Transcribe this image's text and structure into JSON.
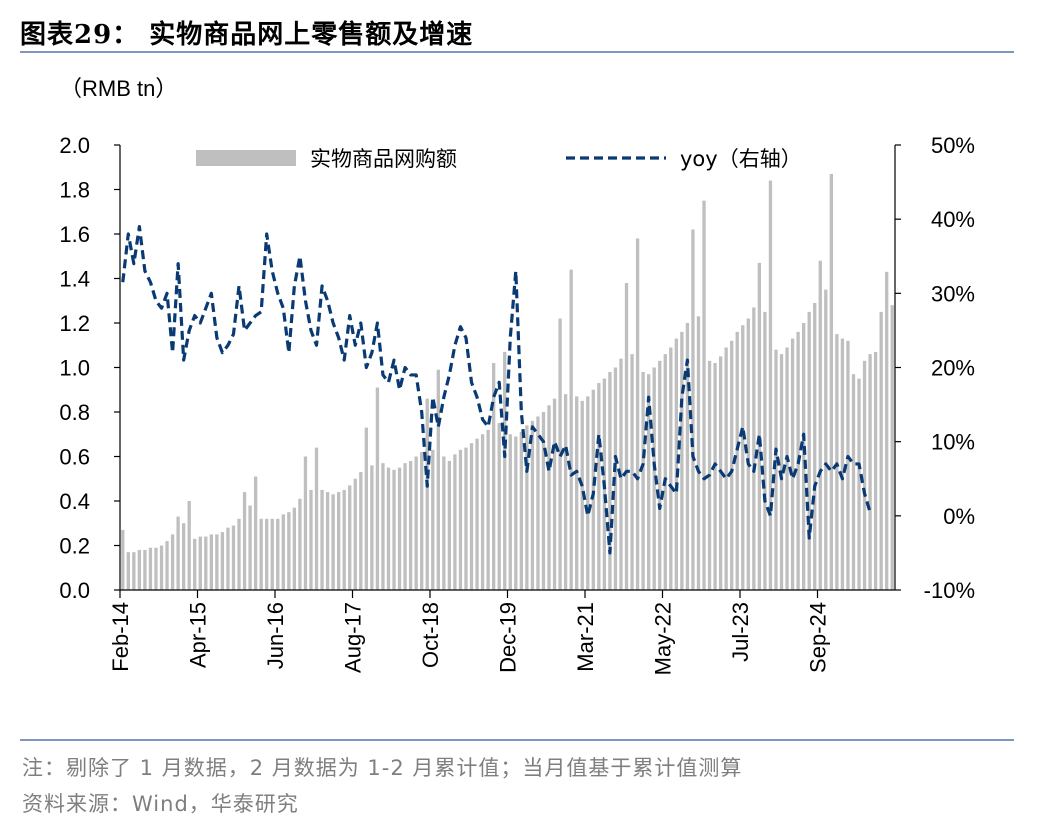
{
  "header": {
    "title": "图表29：  实物商品网上零售额及增速"
  },
  "footer": {
    "note": "注：剔除了 1 月数据，2 月数据为 1-2 月累计值；当月值基于累计值测算",
    "source": "资料来源：Wind，华泰研究"
  },
  "colors": {
    "bar": "#bfbfbf",
    "line": "#0a3a74",
    "rule": "#7f96bd"
  },
  "chart_data": {
    "type": "bar",
    "title": "实物商品网上零售额及增速",
    "unit_label": "（RMB tn）",
    "legend": {
      "bar_label": "实物商品网购额",
      "line_label": "yoy（右轴）",
      "placement": "top"
    },
    "x_tick_labels": [
      "Feb-14",
      "Apr-15",
      "Jun-16",
      "Aug-17",
      "Oct-18",
      "Dec-19",
      "Mar-21",
      "May-22",
      "Jul-23",
      "Sep-24"
    ],
    "left_axis": {
      "min": 0,
      "max": 2.0,
      "step": 0.2,
      "tick_labels": [
        "0.0",
        "0.2",
        "0.4",
        "0.6",
        "0.8",
        "1.0",
        "1.2",
        "1.4",
        "1.6",
        "1.8",
        "2.0"
      ]
    },
    "right_axis": {
      "min": -10,
      "max": 50,
      "step": 10,
      "tick_labels": [
        "-10%",
        "0%",
        "10%",
        "20%",
        "30%",
        "40%",
        "50%"
      ]
    },
    "series": [
      {
        "name": "实物商品网购额",
        "kind": "bar",
        "axis": "left",
        "values": [
          0.27,
          0.17,
          0.17,
          0.18,
          0.18,
          0.19,
          0.19,
          0.2,
          0.22,
          0.25,
          0.33,
          0.3,
          0.4,
          0.23,
          0.24,
          0.24,
          0.25,
          0.25,
          0.26,
          0.28,
          0.29,
          0.32,
          0.44,
          0.38,
          0.51,
          0.32,
          0.32,
          0.32,
          0.32,
          0.34,
          0.35,
          0.37,
          0.41,
          0.6,
          0.45,
          0.64,
          0.45,
          0.44,
          0.43,
          0.44,
          0.45,
          0.47,
          0.5,
          0.53,
          0.73,
          0.56,
          0.91,
          0.57,
          0.55,
          0.54,
          0.55,
          0.57,
          0.58,
          0.6,
          0.62,
          0.86,
          0.63,
          0.99,
          0.6,
          0.58,
          0.61,
          0.63,
          0.64,
          0.66,
          0.68,
          0.7,
          0.72,
          1.02,
          0.75,
          1.07,
          0.7,
          0.69,
          0.71,
          0.74,
          0.76,
          0.78,
          0.8,
          0.83,
          0.86,
          1.22,
          0.88,
          1.44,
          0.87,
          0.85,
          0.87,
          0.9,
          0.93,
          0.95,
          0.98,
          1.0,
          1.04,
          1.38,
          1.06,
          1.58,
          0.98,
          0.97,
          1.0,
          1.03,
          1.06,
          1.09,
          1.13,
          1.16,
          1.2,
          1.62,
          1.23,
          1.75,
          1.03,
          1.02,
          1.05,
          1.09,
          1.12,
          1.16,
          1.19,
          1.22,
          1.27,
          1.47,
          1.25,
          1.84,
          1.08,
          1.06,
          1.09,
          1.13,
          1.16,
          1.2,
          1.25,
          1.29,
          1.48,
          1.35,
          1.87,
          1.15,
          1.13,
          1.12,
          0.97,
          0.95,
          1.03,
          1.06,
          1.07,
          1.25,
          1.43,
          1.28
        ]
      },
      {
        "name": "yoy（右轴）",
        "kind": "line",
        "axis": "right",
        "values": [
          31.5,
          38,
          34,
          39,
          33,
          31.5,
          29,
          28,
          30,
          22,
          34,
          21,
          25,
          27,
          26,
          28,
          30,
          24,
          22,
          23,
          24.5,
          31,
          25,
          26,
          27,
          27.5,
          38,
          33,
          30,
          28,
          22,
          31,
          35,
          29,
          25,
          23,
          31,
          29,
          26,
          24,
          21,
          27,
          23,
          26,
          20,
          22,
          26,
          19,
          18,
          21,
          17,
          20,
          19,
          19,
          14,
          4,
          16,
          12,
          16,
          19,
          23,
          25.5,
          24,
          18,
          16,
          13,
          12,
          16,
          18,
          8,
          24,
          33,
          14,
          6,
          12,
          11,
          10,
          6,
          10,
          8,
          9.5,
          5.5,
          6,
          4,
          0,
          3,
          11,
          4,
          -5,
          8,
          5,
          6,
          6,
          5,
          7,
          16,
          7,
          1,
          5,
          4,
          3,
          16,
          21,
          8,
          6,
          5,
          5.5,
          7,
          6,
          5,
          6,
          9,
          12,
          7,
          6,
          11,
          2,
          0,
          9,
          5,
          8,
          5,
          7,
          11,
          -3,
          4,
          6,
          7,
          6,
          7,
          5,
          8,
          7,
          7,
          3,
          0.5
        ]
      }
    ]
  }
}
